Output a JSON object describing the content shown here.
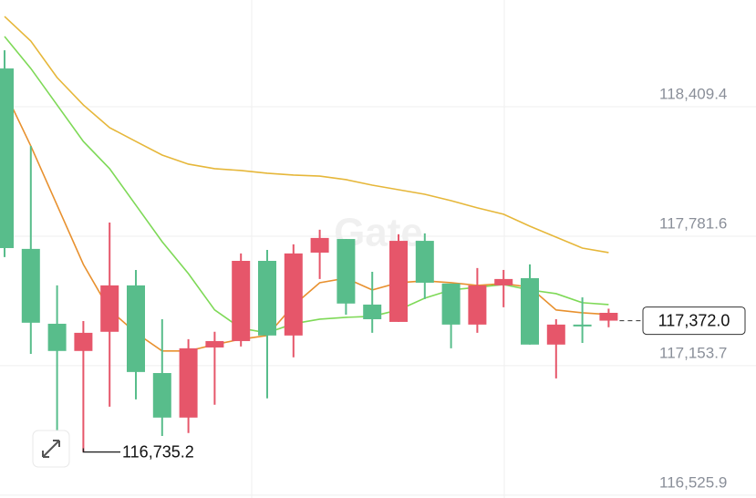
{
  "chart_data": {
    "type": "candlestick",
    "watermark": "Gate",
    "up_color": "#58bd8b",
    "down_color": "#e6566a",
    "open": [
      117724,
      117362,
      117225,
      117313,
      117543,
      117123,
      116902,
      117238,
      117273,
      117662,
      117300,
      117698,
      117773,
      117455,
      117379,
      117759,
      117556,
      117353,
      117543,
      117574,
      117256,
      117353,
      117344,
      117410
    ],
    "high": [
      118683,
      118219,
      117543,
      117370,
      117848,
      117618,
      117379,
      117282,
      117318,
      117698,
      117715,
      117742,
      117813,
      117768,
      117609,
      117791,
      117795,
      117552,
      117627,
      117618,
      117645,
      117379,
      117485,
      117430
    ],
    "low": [
      117680,
      117211,
      116822,
      116735.2,
      116955,
      116990,
      116813,
      116827,
      116964,
      117247,
      116995,
      117194,
      117574,
      117401,
      117313,
      117366,
      117477,
      117238,
      117313,
      117437,
      117256,
      117092,
      117264,
      117340
    ],
    "close": [
      118595,
      117720,
      117357,
      117225,
      117318,
      117543,
      117118,
      116902,
      117242,
      117273,
      117662,
      117300,
      117702,
      117768,
      117450,
      117366,
      117759,
      117552,
      117353,
      117543,
      117578,
      117256,
      117353,
      117372.0
    ],
    "moving_averages": [
      {
        "color": "#e8912f",
        "values": [
          118485,
          118219,
          117932,
          117645,
          117424,
          117313,
          117225,
          117225,
          117256,
          117282,
          117300,
          117446,
          117556,
          117578,
          117521,
          117556,
          117565,
          117556,
          117543,
          117552,
          117534,
          117424,
          117410,
          117402
        ]
      },
      {
        "color": "#7ed957",
        "values": [
          118750,
          118595,
          118418,
          118241,
          118109,
          117932,
          117755,
          117600,
          117424,
          117335,
          117313,
          117357,
          117379,
          117388,
          117393,
          117424,
          117481,
          117521,
          117534,
          117547,
          117521,
          117503,
          117459,
          117450
        ]
      },
      {
        "color": "#e6b73a",
        "values": [
          118847,
          118728,
          118551,
          118418,
          118308,
          118241,
          118175,
          118131,
          118109,
          118100,
          118087,
          118078,
          118073,
          118056,
          118029,
          118007,
          117985,
          117954,
          117919,
          117888,
          117830,
          117777,
          117724,
          117702
        ]
      }
    ],
    "ylim": [
      116512,
      118927
    ],
    "yticks": [
      {
        "value": 118409.4,
        "label": "118,409.4"
      },
      {
        "value": 117781.6,
        "label": "117,781.6"
      },
      {
        "value": 117153.7,
        "label": "117,153.7"
      },
      {
        "value": 116525.9,
        "label": "116,525.9"
      }
    ],
    "grid": true,
    "last_price": {
      "value": 117372.0,
      "label": "117,372.0"
    },
    "min_annotation": {
      "value": 116735.2,
      "label": "116,735.2"
    }
  }
}
